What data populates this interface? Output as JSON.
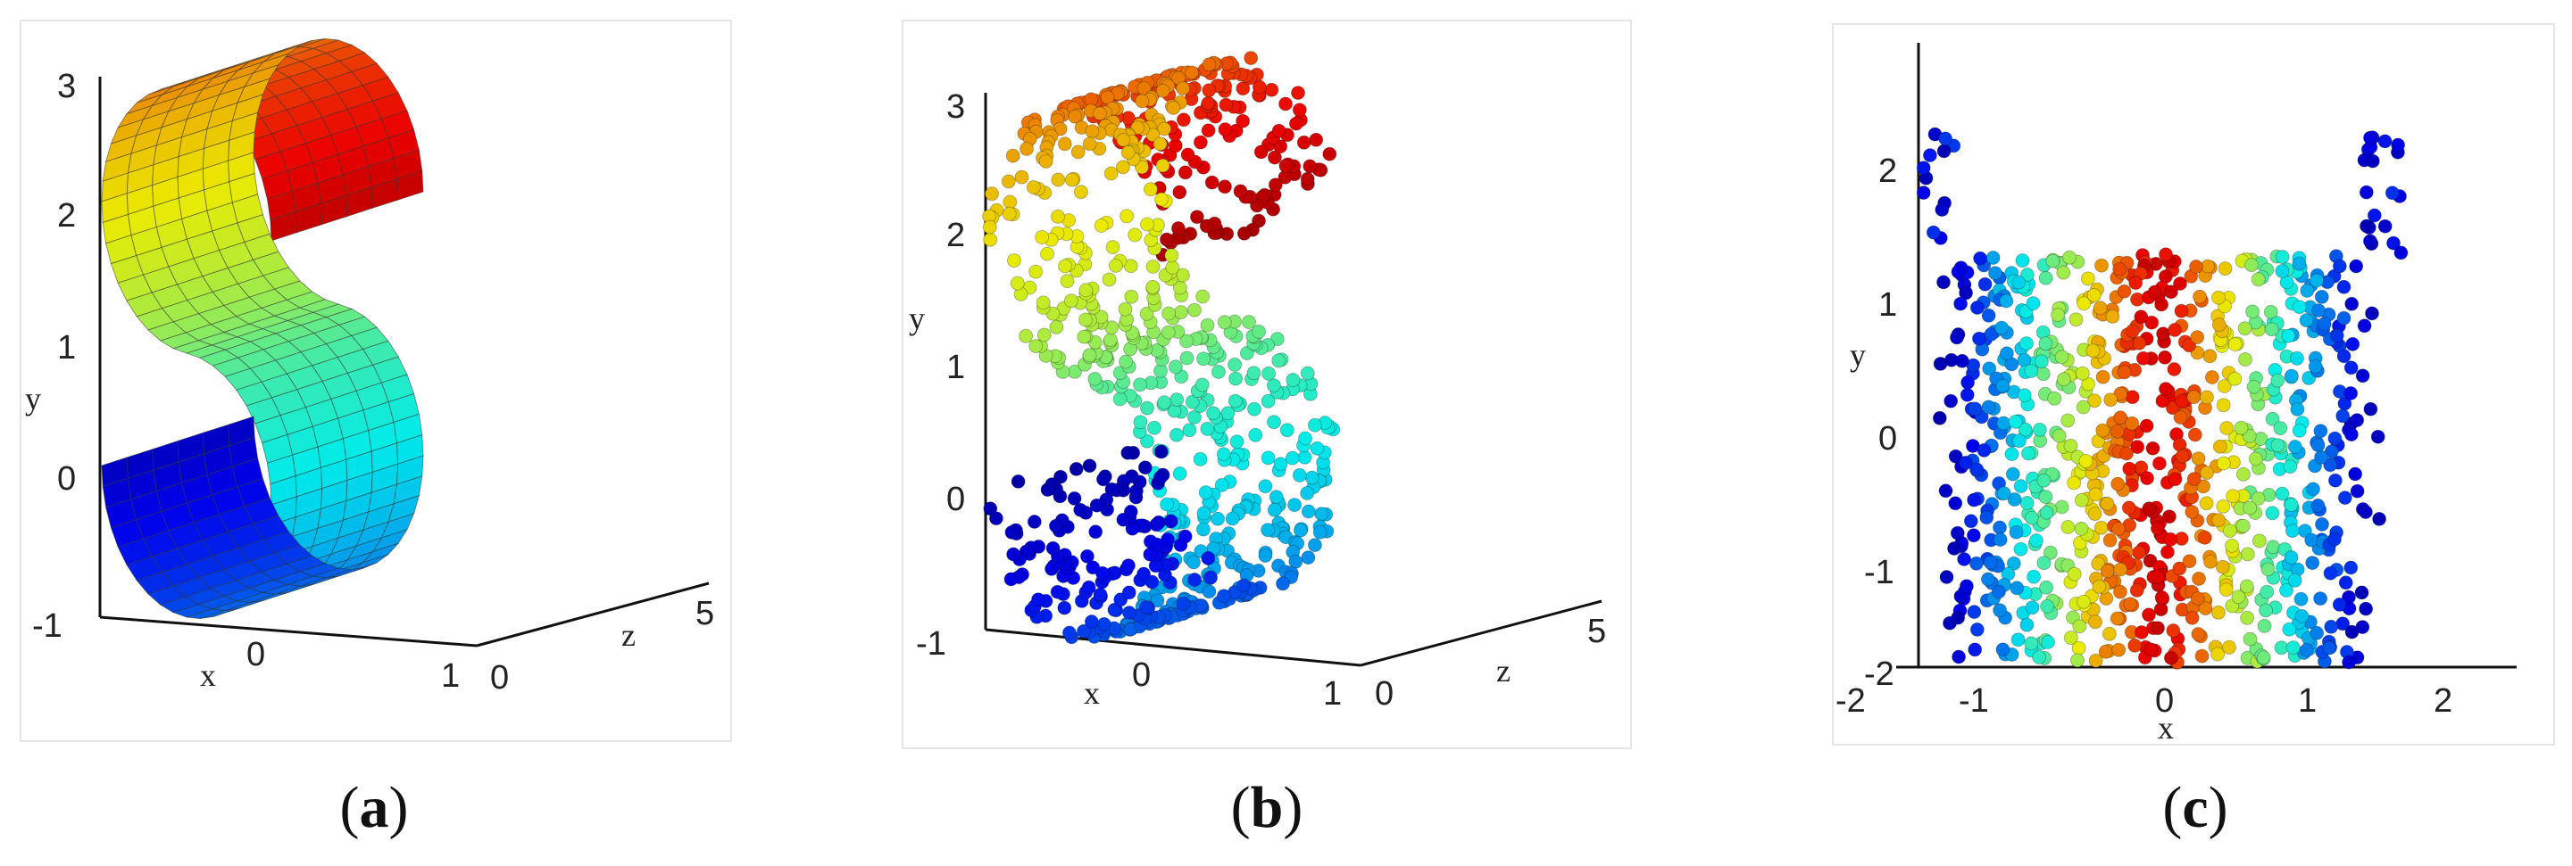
{
  "figure": {
    "captions": [
      {
        "open": "(",
        "letter": "a",
        "close": ")"
      },
      {
        "open": "(",
        "letter": "b",
        "close": ")"
      },
      {
        "open": "(",
        "letter": "c",
        "close": ")"
      }
    ]
  },
  "chart_data": [
    {
      "type": "surface",
      "description_key": "s-curve-surface",
      "xlabel": "x",
      "ylabel": "y",
      "zlabel": "z",
      "x_ticks": [
        "0",
        "1"
      ],
      "y_ticks": [
        "3",
        "2",
        "1",
        "0",
        "-1"
      ],
      "z_ticks": [
        "0",
        "5"
      ],
      "xlim": [
        -1,
        1
      ],
      "ylim": [
        -1,
        3
      ],
      "zlim": [
        0,
        5
      ],
      "colormap": "jet",
      "grid": false
    },
    {
      "type": "scatter",
      "description_key": "s-curve-points",
      "xlabel": "x",
      "ylabel": "y",
      "zlabel": "z",
      "x_ticks": [
        "0",
        "1"
      ],
      "y_ticks": [
        "3",
        "2",
        "1",
        "0",
        "-1"
      ],
      "z_ticks": [
        "0",
        "5"
      ],
      "xlim": [
        -1,
        1
      ],
      "ylim": [
        -1,
        3
      ],
      "zlim": [
        0,
        5
      ],
      "colormap": "jet",
      "grid": false
    },
    {
      "type": "scatter",
      "description_key": "2d-embedding",
      "xlabel": "x",
      "ylabel": "y",
      "x_ticks": [
        "-2",
        "-1",
        "0",
        "1",
        "2"
      ],
      "y_ticks": [
        "2",
        "1",
        "0",
        "-1",
        "-2"
      ],
      "xlim": [
        -2,
        2.5
      ],
      "ylim": [
        -2,
        3
      ],
      "colormap": "jet",
      "grid": false
    }
  ]
}
